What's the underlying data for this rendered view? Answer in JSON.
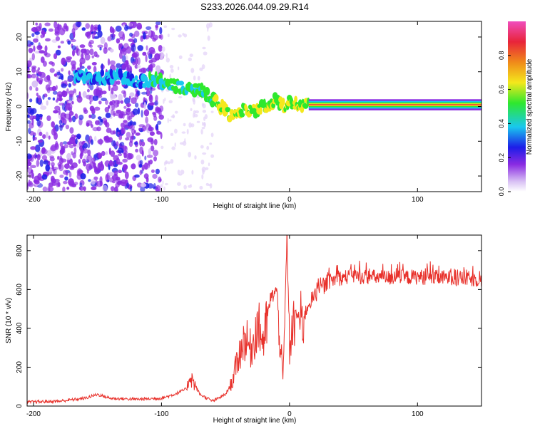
{
  "title": "S233.2026.044.09.29.R14",
  "colors": {
    "axis": "#000000",
    "snr_line": "#e8302a",
    "colormap": [
      "#ffffff",
      "#c9a8ee",
      "#8a2be2",
      "#1d1de8",
      "#19c8ee",
      "#2ee82e",
      "#f4e81c",
      "#f08a1a",
      "#e8243a",
      "#f04dbd"
    ]
  },
  "chart_data": [
    {
      "type": "heatmap",
      "xlabel": "Height of straight line (km)",
      "ylabel": "Frequency (Hz)",
      "xlim": [
        -205,
        150
      ],
      "ylim": [
        -24.5,
        24.5
      ],
      "xticks": [
        -200,
        -100,
        0,
        100
      ],
      "yticks": [
        -20,
        -10,
        0,
        10,
        20
      ],
      "colorbar": {
        "label": "Normalized spectral amplitude",
        "range": [
          0,
          1
        ],
        "ticks": [
          "0.0",
          "0.2",
          "0.4",
          "0.6",
          "0.8"
        ]
      },
      "ridge": {
        "x": [
          -165,
          -150,
          -135,
          -120,
          -105,
          -90,
          -80,
          -70,
          -60,
          -50,
          -45,
          -40,
          -35,
          -30,
          -25,
          -20,
          -15,
          -10,
          -5,
          0,
          5,
          10,
          15,
          150
        ],
        "freq": [
          9,
          8,
          9,
          7,
          8,
          6,
          5,
          5,
          2,
          -1,
          -3,
          -2,
          -1,
          -1,
          -1,
          0,
          1,
          2,
          0,
          1,
          1,
          0.5,
          0.5,
          0.5
        ]
      }
    },
    {
      "type": "line",
      "xlabel": "Height of straight line (km)",
      "ylabel": "SNR (10 * v/v)",
      "xlim": [
        -205,
        150
      ],
      "ylim": [
        0,
        880
      ],
      "xticks": [
        -200,
        -100,
        0,
        100
      ],
      "yticks": [
        0,
        200,
        400,
        600,
        800
      ],
      "series": [
        {
          "x": [
            -205,
            -180,
            -160,
            -150,
            -140,
            -120,
            -100,
            -90,
            -80,
            -78,
            -70,
            -60,
            -50,
            -45,
            -40,
            -35,
            -30,
            -25,
            -20,
            -15,
            -10,
            -5,
            -2,
            0,
            5,
            10,
            15,
            20,
            25,
            30,
            40,
            50,
            60,
            80,
            100,
            120,
            140,
            150
          ],
          "y": [
            20,
            25,
            40,
            60,
            40,
            35,
            40,
            60,
            90,
            160,
            60,
            25,
            60,
            120,
            250,
            350,
            290,
            420,
            330,
            550,
            600,
            120,
            880,
            300,
            480,
            430,
            530,
            570,
            600,
            640,
            660,
            670,
            665,
            660,
            665,
            660,
            655,
            650
          ]
        }
      ]
    }
  ]
}
